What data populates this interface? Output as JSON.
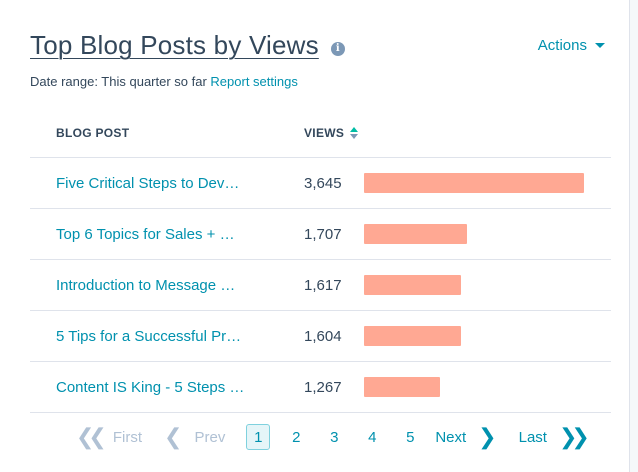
{
  "header": {
    "title": "Top Blog Posts by Views",
    "actions_label": "Actions"
  },
  "date_range": {
    "label": "Date range: This quarter so far",
    "settings_link": "Report settings"
  },
  "table": {
    "columns": [
      "BLOG POST",
      "VIEWS"
    ],
    "max_views": 3645,
    "rows": [
      {
        "post": "Five Critical Steps to Dev…",
        "views": 3645,
        "views_label": "3,645"
      },
      {
        "post": "Top 6 Topics for Sales + …",
        "views": 1707,
        "views_label": "1,707"
      },
      {
        "post": "Introduction to Message …",
        "views": 1617,
        "views_label": "1,617"
      },
      {
        "post": "5 Tips for a Successful Pr…",
        "views": 1604,
        "views_label": "1,604"
      },
      {
        "post": "Content IS King - 5 Steps …",
        "views": 1267,
        "views_label": "1,267"
      }
    ]
  },
  "pagination": {
    "first": "First",
    "prev": "Prev",
    "pages": [
      "1",
      "2",
      "3",
      "4",
      "5"
    ],
    "current": "1",
    "next": "Next",
    "last": "Last"
  },
  "colors": {
    "bar": "#ff9e87",
    "link": "#0091ae",
    "text": "#33475b",
    "disabled": "#b0c1d4"
  },
  "icons": {
    "info": "info-circle-icon",
    "actions_caret": "caret-down-icon",
    "sort": "sort-icon",
    "first": "double-chevron-left-icon",
    "prev": "chevron-left-icon",
    "next": "chevron-right-icon",
    "last": "double-chevron-right-icon"
  }
}
